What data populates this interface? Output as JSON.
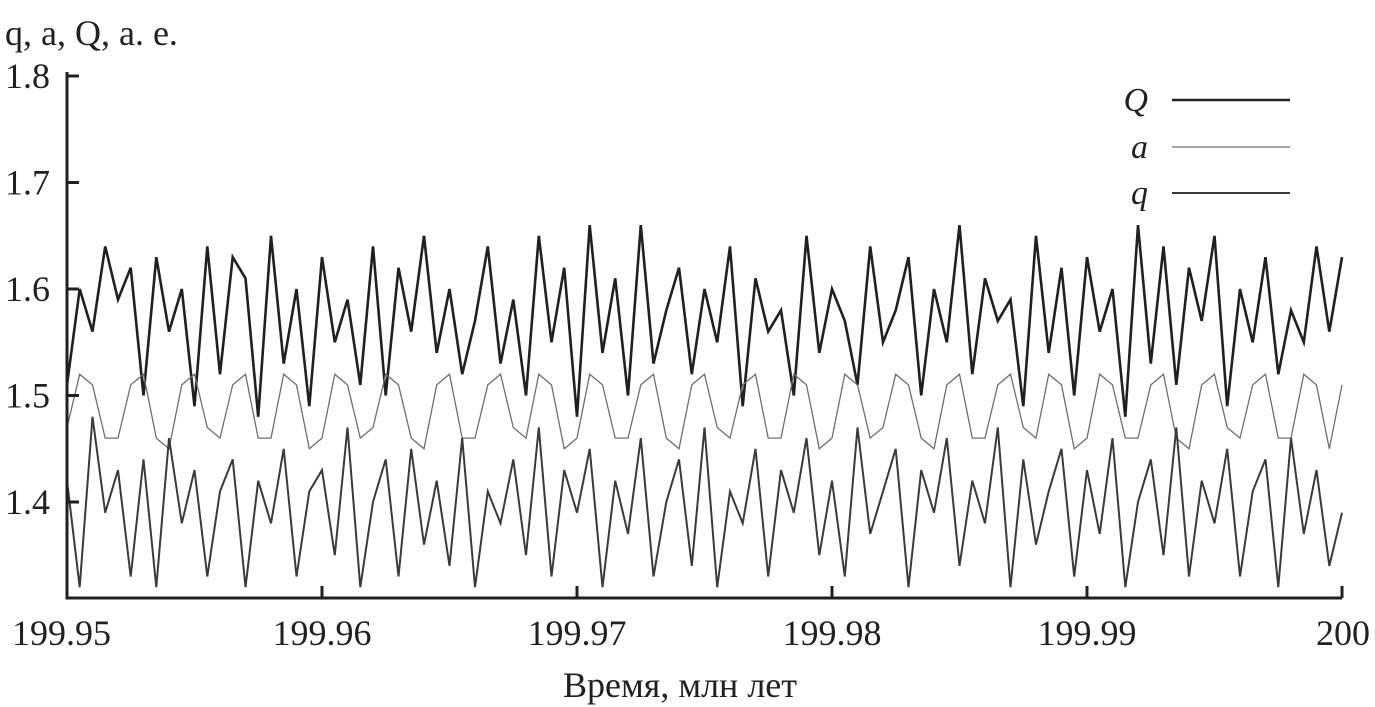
{
  "chart_data": {
    "type": "line",
    "title": "",
    "xlabel": "Время, млн лет",
    "ylabel": "q, a, Q, а. е.",
    "xlim": [
      199.95,
      200
    ],
    "ylim": [
      1.31,
      1.8
    ],
    "x_ticks": [
      "199.95",
      "199.96",
      "199.97",
      "199.98",
      "199.99",
      "200"
    ],
    "y_ticks": [
      "1.8",
      "1.7",
      "1.6",
      "1.5",
      "1.4"
    ],
    "grid": false,
    "legend_position": "top-right",
    "series": [
      {
        "name": "Q",
        "color": "#231f20",
        "values": [
          1.51,
          1.6,
          1.56,
          1.64,
          1.59,
          1.62,
          1.5,
          1.63,
          1.56,
          1.6,
          1.49,
          1.64,
          1.52,
          1.63,
          1.61,
          1.48,
          1.65,
          1.53,
          1.6,
          1.49,
          1.63,
          1.55,
          1.59,
          1.51,
          1.64,
          1.5,
          1.62,
          1.56,
          1.65,
          1.54,
          1.6,
          1.52,
          1.57,
          1.64,
          1.53,
          1.59,
          1.5,
          1.65,
          1.55,
          1.62,
          1.48,
          1.66,
          1.54,
          1.61,
          1.5,
          1.66,
          1.53,
          1.58,
          1.62,
          1.52,
          1.6,
          1.55,
          1.64,
          1.49,
          1.61,
          1.56,
          1.58,
          1.5,
          1.65,
          1.54,
          1.6,
          1.57,
          1.51,
          1.64,
          1.55,
          1.58,
          1.63,
          1.5,
          1.6,
          1.55,
          1.66,
          1.52,
          1.61,
          1.57,
          1.59,
          1.49,
          1.65,
          1.54,
          1.62,
          1.5,
          1.63,
          1.56,
          1.6,
          1.48,
          1.66,
          1.53,
          1.64,
          1.51,
          1.62,
          1.57,
          1.65,
          1.49,
          1.6,
          1.55,
          1.63,
          1.52,
          1.58,
          1.55,
          1.64,
          1.56,
          1.63
        ]
      },
      {
        "name": "a",
        "color": "#6d6e71",
        "values": [
          1.47,
          1.52,
          1.51,
          1.46,
          1.46,
          1.51,
          1.52,
          1.46,
          1.45,
          1.51,
          1.52,
          1.47,
          1.46,
          1.51,
          1.52,
          1.46,
          1.46,
          1.52,
          1.51,
          1.45,
          1.46,
          1.52,
          1.51,
          1.46,
          1.47,
          1.52,
          1.51,
          1.46,
          1.45,
          1.51,
          1.52,
          1.46,
          1.46,
          1.51,
          1.52,
          1.47,
          1.46,
          1.52,
          1.51,
          1.45,
          1.46,
          1.52,
          1.51,
          1.46,
          1.46,
          1.51,
          1.52,
          1.46,
          1.45,
          1.51,
          1.52,
          1.47,
          1.46,
          1.51,
          1.52,
          1.46,
          1.46,
          1.52,
          1.51,
          1.45,
          1.46,
          1.52,
          1.51,
          1.46,
          1.47,
          1.52,
          1.51,
          1.46,
          1.45,
          1.51,
          1.52,
          1.46,
          1.46,
          1.51,
          1.52,
          1.47,
          1.46,
          1.52,
          1.51,
          1.45,
          1.46,
          1.52,
          1.51,
          1.46,
          1.46,
          1.51,
          1.52,
          1.46,
          1.45,
          1.51,
          1.52,
          1.47,
          1.46,
          1.51,
          1.52,
          1.46,
          1.46,
          1.52,
          1.51,
          1.45,
          1.51
        ]
      },
      {
        "name": "q",
        "color": "#3a3a3c",
        "values": [
          1.42,
          1.32,
          1.48,
          1.39,
          1.43,
          1.33,
          1.44,
          1.32,
          1.46,
          1.38,
          1.43,
          1.33,
          1.41,
          1.44,
          1.32,
          1.42,
          1.38,
          1.45,
          1.33,
          1.41,
          1.43,
          1.35,
          1.47,
          1.32,
          1.4,
          1.44,
          1.33,
          1.45,
          1.36,
          1.42,
          1.34,
          1.46,
          1.32,
          1.41,
          1.38,
          1.44,
          1.35,
          1.47,
          1.33,
          1.43,
          1.39,
          1.45,
          1.32,
          1.42,
          1.37,
          1.46,
          1.33,
          1.4,
          1.44,
          1.34,
          1.47,
          1.32,
          1.41,
          1.38,
          1.45,
          1.33,
          1.43,
          1.39,
          1.46,
          1.35,
          1.42,
          1.33,
          1.47,
          1.37,
          1.41,
          1.45,
          1.32,
          1.43,
          1.39,
          1.46,
          1.34,
          1.42,
          1.38,
          1.47,
          1.32,
          1.44,
          1.36,
          1.41,
          1.45,
          1.33,
          1.43,
          1.37,
          1.46,
          1.32,
          1.4,
          1.44,
          1.35,
          1.47,
          1.33,
          1.42,
          1.38,
          1.45,
          1.33,
          1.41,
          1.44,
          1.32,
          1.46,
          1.37,
          1.43,
          1.34,
          1.39
        ]
      }
    ]
  }
}
